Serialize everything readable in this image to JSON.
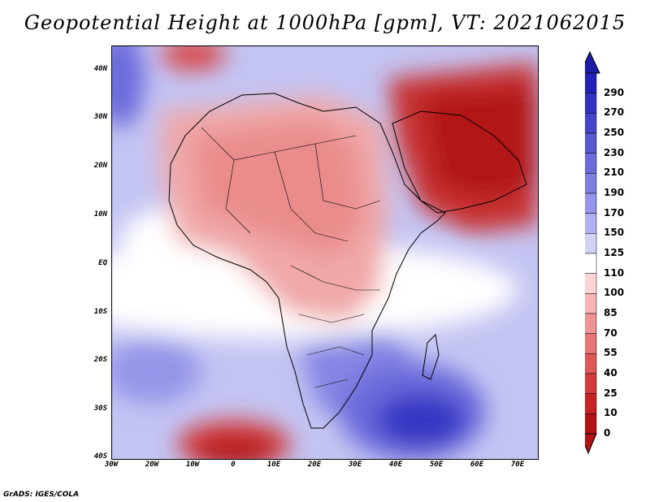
{
  "title": "Geopotential Height at 1000hPa [gpm], VT: 2021062015",
  "lat_labels": [
    "40N",
    "30N",
    "20N",
    "10N",
    "EQ",
    "10S",
    "20S",
    "30S",
    "40S"
  ],
  "lon_labels": [
    "30W",
    "20W",
    "10W",
    "0",
    "10E",
    "20E",
    "30E",
    "40E",
    "50E",
    "60E",
    "70E"
  ],
  "colorbar": {
    "levels": [
      "290",
      "270",
      "250",
      "230",
      "210",
      "190",
      "170",
      "150",
      "125",
      "110",
      "100",
      "85",
      "70",
      "55",
      "40",
      "25",
      "10",
      "0"
    ],
    "colors": [
      "#2222b8",
      "#3333c2",
      "#4545cb",
      "#5858d3",
      "#6b6bdb",
      "#7f7fe2",
      "#9595e9",
      "#b0b0f0",
      "#d2d2f7",
      "#ffffff",
      "#fcd4d4",
      "#f6b4b4",
      "#ef9494",
      "#e87575",
      "#df5757",
      "#d43c3c",
      "#c72424",
      "#b21212"
    ]
  },
  "credit": "GrADS: IGES/COLA"
}
